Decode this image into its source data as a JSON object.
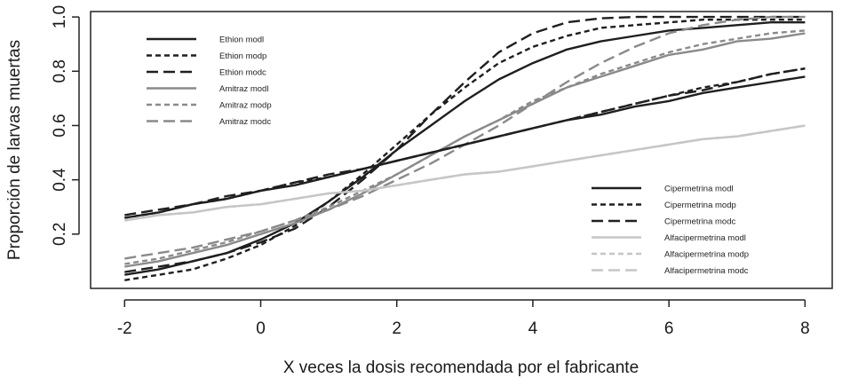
{
  "chart_data": {
    "type": "line",
    "title": "",
    "xlabel": "X veces la dosis recomendada por el fabricante",
    "ylabel": "Proporción de larvas muertas",
    "xlim": [
      -2.5,
      8.4
    ],
    "ylim": [
      0.0,
      1.02
    ],
    "xticks": [
      -2,
      0,
      2,
      4,
      6,
      8
    ],
    "yticks": [
      0.2,
      0.4,
      0.6,
      0.8,
      1.0
    ],
    "xtick_labels": [
      "-2",
      "0",
      "2",
      "4",
      "6",
      "8"
    ],
    "ytick_labels": [
      "0.2",
      "0.4",
      "0.6",
      "0.8",
      "1.0"
    ],
    "grid": false,
    "x": [
      -2,
      -1.5,
      -1,
      -0.5,
      0,
      0.5,
      1,
      1.5,
      2,
      2.5,
      3,
      3.5,
      4,
      4.5,
      5,
      5.5,
      6,
      6.5,
      7,
      7.5,
      8
    ],
    "series": [
      {
        "name": "Ethion modl",
        "color": "#1f1f1f",
        "dash": "solid",
        "legend": 1,
        "values": [
          0.05,
          0.07,
          0.1,
          0.13,
          0.18,
          0.24,
          0.32,
          0.41,
          0.51,
          0.6,
          0.69,
          0.77,
          0.83,
          0.88,
          0.91,
          0.93,
          0.95,
          0.96,
          0.97,
          0.98,
          0.98
        ]
      },
      {
        "name": "Ethion modp",
        "color": "#1f1f1f",
        "dash": "short",
        "legend": 1,
        "values": [
          0.03,
          0.05,
          0.07,
          0.11,
          0.16,
          0.23,
          0.32,
          0.42,
          0.53,
          0.64,
          0.74,
          0.83,
          0.89,
          0.93,
          0.96,
          0.97,
          0.98,
          0.99,
          0.99,
          0.99,
          0.99
        ]
      },
      {
        "name": "Ethion modc",
        "color": "#1f1f1f",
        "dash": "long",
        "legend": 1,
        "values": [
          0.06,
          0.08,
          0.1,
          0.13,
          0.17,
          0.22,
          0.3,
          0.4,
          0.51,
          0.64,
          0.76,
          0.87,
          0.94,
          0.98,
          0.995,
          1.0,
          1.0,
          1.0,
          1.0,
          1.0,
          1.0
        ]
      },
      {
        "name": "Amitraz modl",
        "color": "#8a8a8a",
        "dash": "solid",
        "legend": 1,
        "values": [
          0.08,
          0.1,
          0.13,
          0.16,
          0.2,
          0.24,
          0.29,
          0.35,
          0.42,
          0.49,
          0.56,
          0.62,
          0.68,
          0.74,
          0.78,
          0.82,
          0.86,
          0.88,
          0.91,
          0.92,
          0.94
        ]
      },
      {
        "name": "Amitraz modp",
        "color": "#8a8a8a",
        "dash": "short",
        "legend": 1,
        "values": [
          0.09,
          0.11,
          0.14,
          0.17,
          0.21,
          0.25,
          0.3,
          0.36,
          0.42,
          0.49,
          0.56,
          0.62,
          0.69,
          0.74,
          0.79,
          0.83,
          0.87,
          0.9,
          0.92,
          0.94,
          0.95
        ]
      },
      {
        "name": "Amitraz modc",
        "color": "#8a8a8a",
        "dash": "long",
        "legend": 1,
        "values": [
          0.11,
          0.13,
          0.15,
          0.18,
          0.21,
          0.25,
          0.29,
          0.34,
          0.4,
          0.46,
          0.53,
          0.6,
          0.68,
          0.76,
          0.83,
          0.89,
          0.94,
          0.97,
          0.99,
          1.0,
          1.0
        ]
      },
      {
        "name": "Cipermetrina modl",
        "color": "#1f1f1f",
        "dash": "solid",
        "legend": 2,
        "values": [
          0.26,
          0.28,
          0.31,
          0.33,
          0.36,
          0.38,
          0.41,
          0.44,
          0.47,
          0.5,
          0.53,
          0.56,
          0.59,
          0.62,
          0.64,
          0.67,
          0.69,
          0.72,
          0.74,
          0.76,
          0.78
        ]
      },
      {
        "name": "Cipermetrina modp",
        "color": "#1f1f1f",
        "dash": "short",
        "legend": 2,
        "values": [
          0.26,
          0.28,
          0.31,
          0.33,
          0.36,
          0.39,
          0.41,
          0.44,
          0.47,
          0.5,
          0.53,
          0.56,
          0.59,
          0.62,
          0.65,
          0.68,
          0.71,
          0.74,
          0.76,
          0.79,
          0.81
        ]
      },
      {
        "name": "Cipermetrina modc",
        "color": "#1f1f1f",
        "dash": "long",
        "legend": 2,
        "values": [
          0.27,
          0.29,
          0.31,
          0.34,
          0.36,
          0.39,
          0.42,
          0.44,
          0.47,
          0.5,
          0.53,
          0.56,
          0.59,
          0.62,
          0.65,
          0.68,
          0.71,
          0.73,
          0.76,
          0.79,
          0.81
        ]
      },
      {
        "name": "Alfacipermetrina modl",
        "color": "#c6c6c6",
        "dash": "solid",
        "legend": 2,
        "values": [
          0.25,
          0.27,
          0.28,
          0.3,
          0.31,
          0.33,
          0.35,
          0.36,
          0.38,
          0.4,
          0.42,
          0.43,
          0.45,
          0.47,
          0.49,
          0.51,
          0.53,
          0.55,
          0.56,
          0.58,
          0.6
        ]
      },
      {
        "name": "Alfacipermetrina modp",
        "color": "#c6c6c6",
        "dash": "short",
        "legend": 2,
        "values": [
          0.25,
          0.27,
          0.28,
          0.3,
          0.31,
          0.33,
          0.35,
          0.36,
          0.38,
          0.4,
          0.42,
          0.43,
          0.45,
          0.47,
          0.49,
          0.51,
          0.53,
          0.55,
          0.56,
          0.58,
          0.6
        ]
      },
      {
        "name": "Alfacipermetrina modc",
        "color": "#c6c6c6",
        "dash": "long",
        "legend": 2,
        "values": [
          0.25,
          0.27,
          0.28,
          0.3,
          0.31,
          0.33,
          0.35,
          0.36,
          0.38,
          0.4,
          0.42,
          0.43,
          0.45,
          0.47,
          0.49,
          0.51,
          0.53,
          0.55,
          0.56,
          0.58,
          0.6
        ]
      }
    ],
    "legends": [
      {
        "position": "top-left"
      },
      {
        "position": "bottom-right"
      }
    ]
  }
}
